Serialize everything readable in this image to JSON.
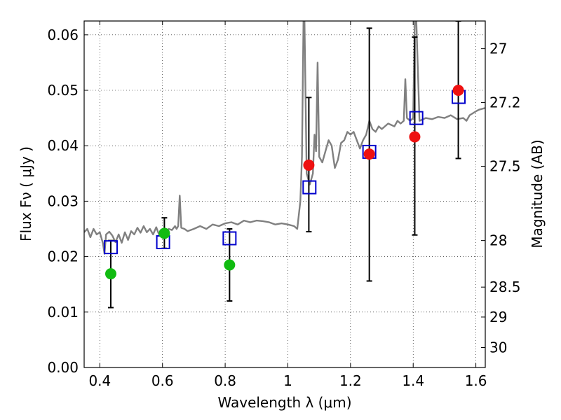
{
  "chart_data": {
    "type": "scatter",
    "xlabel": "Wavelength  λ (μm)",
    "ylabel": "Flux  Fν  ( μJy )",
    "ylabel_right": "Magnitude (AB)",
    "xlim": [
      0.35,
      1.63
    ],
    "ylim": [
      0.0,
      0.0625
    ],
    "grid": true,
    "x_ticks": [
      0.4,
      0.6,
      0.8,
      1.0,
      1.2,
      1.4,
      1.6
    ],
    "x_tick_labels": [
      "0.4",
      "0.6",
      "0.8",
      "1",
      "1.2",
      "1.4",
      "1.6"
    ],
    "y_ticks": [
      0.0,
      0.01,
      0.02,
      0.03,
      0.04,
      0.05,
      0.06
    ],
    "y_tick_labels": [
      "0.00",
      "0.01",
      "0.02",
      "0.03",
      "0.04",
      "0.05",
      "0.06"
    ],
    "right_ticks": [
      {
        "flux": 0.0575,
        "label": "27"
      },
      {
        "flux": 0.0478,
        "label": "27.2"
      },
      {
        "flux": 0.0363,
        "label": "27.5"
      },
      {
        "flux": 0.0229,
        "label": "28"
      },
      {
        "flux": 0.0145,
        "label": "28.5"
      },
      {
        "flux": 0.0091,
        "label": "29"
      },
      {
        "flux": 0.0036,
        "label": "30"
      }
    ],
    "spectrum": {
      "color": "#808080",
      "points": [
        [
          0.35,
          0.0244
        ],
        [
          0.36,
          0.025
        ],
        [
          0.37,
          0.0235
        ],
        [
          0.38,
          0.025
        ],
        [
          0.39,
          0.024
        ],
        [
          0.4,
          0.0244
        ],
        [
          0.41,
          0.0224
        ],
        [
          0.415,
          0.0205
        ],
        [
          0.42,
          0.024
        ],
        [
          0.43,
          0.0245
        ],
        [
          0.44,
          0.0238
        ],
        [
          0.45,
          0.0226
        ],
        [
          0.46,
          0.024
        ],
        [
          0.47,
          0.0225
        ],
        [
          0.48,
          0.0244
        ],
        [
          0.49,
          0.023
        ],
        [
          0.5,
          0.0246
        ],
        [
          0.51,
          0.024
        ],
        [
          0.52,
          0.0252
        ],
        [
          0.53,
          0.0243
        ],
        [
          0.54,
          0.0255
        ],
        [
          0.55,
          0.0244
        ],
        [
          0.56,
          0.025
        ],
        [
          0.57,
          0.024
        ],
        [
          0.58,
          0.0253
        ],
        [
          0.59,
          0.0238
        ],
        [
          0.6,
          0.0248
        ],
        [
          0.61,
          0.0245
        ],
        [
          0.62,
          0.025
        ],
        [
          0.63,
          0.0248
        ],
        [
          0.64,
          0.0255
        ],
        [
          0.645,
          0.025
        ],
        [
          0.65,
          0.0255
        ],
        [
          0.655,
          0.031
        ],
        [
          0.66,
          0.0252
        ],
        [
          0.67,
          0.025
        ],
        [
          0.68,
          0.0246
        ],
        [
          0.7,
          0.025
        ],
        [
          0.72,
          0.0255
        ],
        [
          0.74,
          0.025
        ],
        [
          0.76,
          0.0258
        ],
        [
          0.78,
          0.0255
        ],
        [
          0.8,
          0.026
        ],
        [
          0.82,
          0.0262
        ],
        [
          0.84,
          0.0258
        ],
        [
          0.86,
          0.0265
        ],
        [
          0.88,
          0.0262
        ],
        [
          0.9,
          0.0265
        ],
        [
          0.92,
          0.0264
        ],
        [
          0.94,
          0.0262
        ],
        [
          0.96,
          0.0258
        ],
        [
          0.98,
          0.026
        ],
        [
          1.0,
          0.0258
        ],
        [
          1.02,
          0.0255
        ],
        [
          1.03,
          0.025
        ],
        [
          1.04,
          0.03
        ],
        [
          1.045,
          0.038
        ],
        [
          1.05,
          0.0625
        ],
        [
          1.053,
          0.0625
        ],
        [
          1.06,
          0.035
        ],
        [
          1.07,
          0.033
        ],
        [
          1.08,
          0.035
        ],
        [
          1.085,
          0.042
        ],
        [
          1.09,
          0.039
        ],
        [
          1.095,
          0.055
        ],
        [
          1.1,
          0.038
        ],
        [
          1.11,
          0.037
        ],
        [
          1.12,
          0.039
        ],
        [
          1.13,
          0.041
        ],
        [
          1.14,
          0.04
        ],
        [
          1.15,
          0.036
        ],
        [
          1.16,
          0.0375
        ],
        [
          1.17,
          0.0405
        ],
        [
          1.18,
          0.041
        ],
        [
          1.19,
          0.0425
        ],
        [
          1.2,
          0.042
        ],
        [
          1.21,
          0.0425
        ],
        [
          1.22,
          0.041
        ],
        [
          1.23,
          0.0395
        ],
        [
          1.24,
          0.041
        ],
        [
          1.25,
          0.042
        ],
        [
          1.26,
          0.0445
        ],
        [
          1.27,
          0.043
        ],
        [
          1.28,
          0.0425
        ],
        [
          1.29,
          0.0435
        ],
        [
          1.3,
          0.043
        ],
        [
          1.32,
          0.044
        ],
        [
          1.34,
          0.0435
        ],
        [
          1.35,
          0.0445
        ],
        [
          1.36,
          0.044
        ],
        [
          1.37,
          0.0445
        ],
        [
          1.375,
          0.052
        ],
        [
          1.38,
          0.045
        ],
        [
          1.39,
          0.0445
        ],
        [
          1.4,
          0.045
        ],
        [
          1.405,
          0.0625
        ],
        [
          1.41,
          0.0625
        ],
        [
          1.42,
          0.0445
        ],
        [
          1.44,
          0.045
        ],
        [
          1.46,
          0.0448
        ],
        [
          1.48,
          0.0452
        ],
        [
          1.5,
          0.045
        ],
        [
          1.52,
          0.0455
        ],
        [
          1.54,
          0.0448
        ],
        [
          1.56,
          0.045
        ],
        [
          1.57,
          0.0445
        ],
        [
          1.58,
          0.0455
        ],
        [
          1.6,
          0.0462
        ],
        [
          1.61,
          0.0465
        ],
        [
          1.63,
          0.0468
        ]
      ]
    },
    "model_points": {
      "marker": "open-square",
      "color": "#0000cc",
      "points": [
        [
          0.435,
          0.0217
        ],
        [
          0.602,
          0.0226
        ],
        [
          0.814,
          0.0233
        ],
        [
          1.069,
          0.0325
        ],
        [
          1.26,
          0.0389
        ],
        [
          1.41,
          0.045
        ],
        [
          1.545,
          0.0488
        ]
      ]
    },
    "optical_detections": {
      "marker": "filled-circle",
      "color": "#11bb11",
      "points": [
        {
          "x": 0.435,
          "y": 0.0169,
          "err_lo": 0.0108,
          "err_hi": 0.0229
        },
        {
          "x": 0.606,
          "y": 0.0242,
          "err_lo": 0.0215,
          "err_hi": 0.027
        },
        {
          "x": 0.814,
          "y": 0.0185,
          "err_lo": 0.012,
          "err_hi": 0.025
        }
      ]
    },
    "nir_detections": {
      "marker": "filled-circle",
      "color": "#ee1111",
      "points": [
        {
          "x": 1.067,
          "y": 0.0365,
          "err_lo": 0.0245,
          "err_hi": 0.0487
        },
        {
          "x": 1.26,
          "y": 0.0385,
          "err_lo": 0.0156,
          "err_hi": 0.0612
        },
        {
          "x": 1.405,
          "y": 0.0416,
          "err_lo": 0.0239,
          "err_hi": 0.0596
        },
        {
          "x": 1.544,
          "y": 0.05,
          "err_lo": 0.0377,
          "err_hi": 0.0625
        }
      ]
    }
  }
}
